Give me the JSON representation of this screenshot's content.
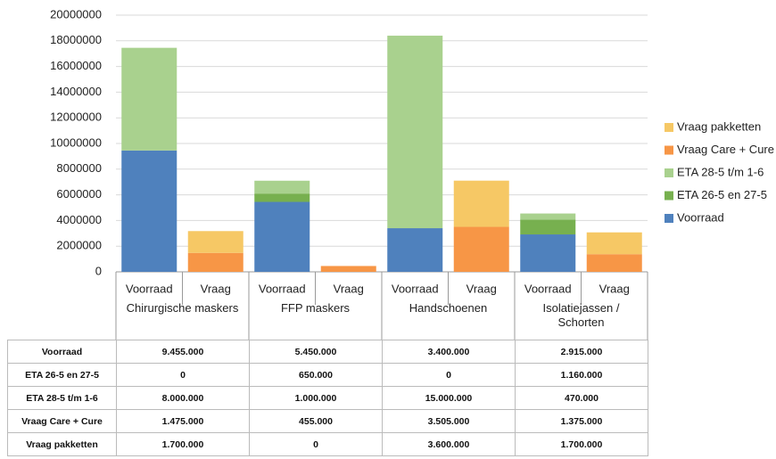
{
  "chart_data": {
    "type": "stacked_bar",
    "groups": [
      "Chirurgische maskers",
      "FFP maskers",
      "Handschoenen",
      "Isolatiejassen / Schorten"
    ],
    "subcategories": [
      "Voorraad",
      "Vraag"
    ],
    "series": [
      {
        "name": "Voorraad",
        "color": "#4f81bd",
        "stack": 0,
        "values": [
          9455000,
          5450000,
          3400000,
          2915000
        ],
        "value_labels": [
          "9.455.000",
          "5.450.000",
          "3.400.000",
          "2.915.000"
        ]
      },
      {
        "name": "ETA 26-5 en 27-5",
        "color": "#77b04f",
        "stack": 0,
        "values": [
          0,
          650000,
          0,
          1160000
        ],
        "value_labels": [
          "0",
          "650.000",
          "0",
          "1.160.000"
        ]
      },
      {
        "name": "ETA 28-5 t/m 1-6",
        "color": "#a9d18e",
        "stack": 0,
        "values": [
          8000000,
          1000000,
          15000000,
          470000
        ],
        "value_labels": [
          "8.000.000",
          "1.000.000",
          "15.000.000",
          "470.000"
        ]
      },
      {
        "name": "Vraag Care + Cure",
        "color": "#f79646",
        "stack": 1,
        "values": [
          1475000,
          455000,
          3505000,
          1375000
        ],
        "value_labels": [
          "1.475.000",
          "455.000",
          "3.505.000",
          "1.375.000"
        ]
      },
      {
        "name": "Vraag pakketten",
        "color": "#f6c865",
        "stack": 1,
        "values": [
          1700000,
          0,
          3600000,
          1700000
        ],
        "value_labels": [
          "1.700.000",
          "0",
          "3.600.000",
          "1.700.000"
        ]
      }
    ],
    "ylim": [
      0,
      20000000
    ],
    "yticks": [
      0,
      2000000,
      4000000,
      6000000,
      8000000,
      10000000,
      12000000,
      14000000,
      16000000,
      18000000,
      20000000
    ],
    "grid": true,
    "legend": "right"
  }
}
